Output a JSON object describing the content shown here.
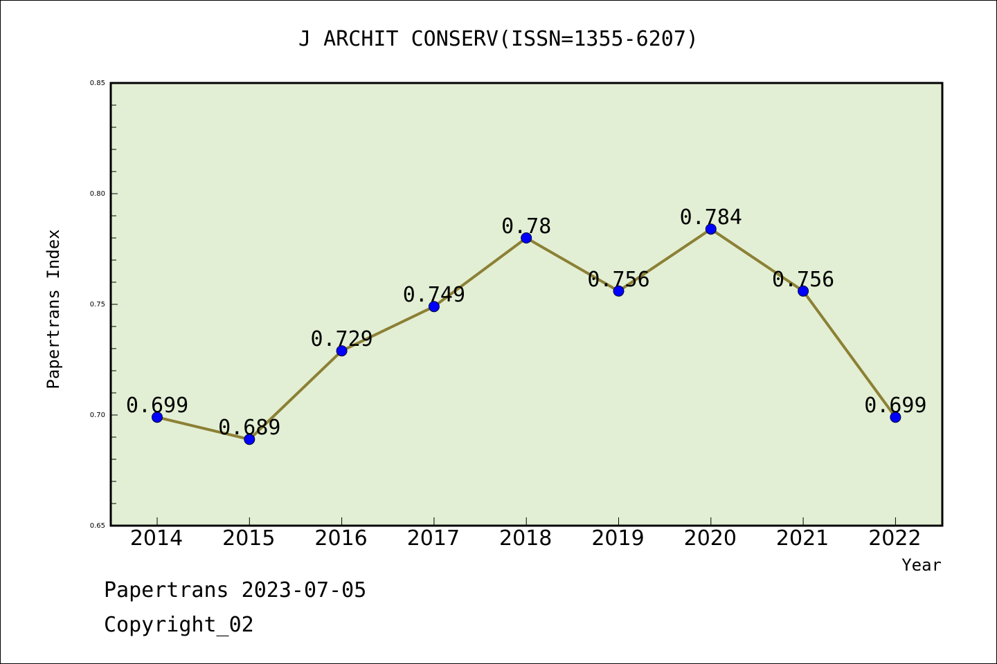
{
  "chart_data": {
    "type": "line",
    "title": "J ARCHIT CONSERV(ISSN=1355-6207)",
    "xlabel": "Year",
    "ylabel": "Papertrans Index",
    "categories": [
      "2014",
      "2015",
      "2016",
      "2017",
      "2018",
      "2019",
      "2020",
      "2021",
      "2022"
    ],
    "values": [
      0.699,
      0.689,
      0.729,
      0.749,
      0.78,
      0.756,
      0.784,
      0.756,
      0.699
    ],
    "data_labels": [
      "0.699",
      "0.689",
      "0.729",
      "0.749",
      "0.78",
      "0.756",
      "0.784",
      "0.756",
      "0.699"
    ],
    "ylim": [
      0.65,
      0.85
    ],
    "yticks": [
      "0.65",
      "0.70",
      "0.75",
      "0.80",
      "0.85"
    ],
    "grid": false,
    "colors": {
      "plot_background": "#e2efd4",
      "line": "#8c8035",
      "marker": "#0000ff"
    }
  },
  "footer": {
    "date_line": "Papertrans 2023-07-05",
    "copyright": "Copyright_02"
  }
}
